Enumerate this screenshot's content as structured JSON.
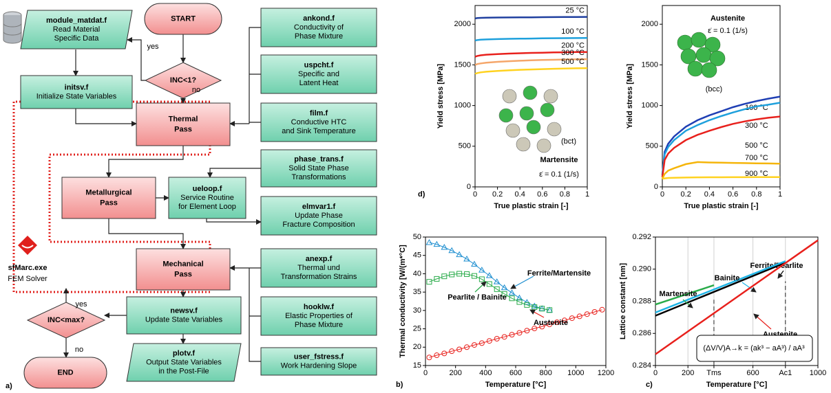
{
  "flowchart": {
    "nodes": [
      {
        "lines": [
          "START"
        ]
      },
      {
        "lines": [
          "module_matdat.f",
          "Read Material",
          "Specific Data"
        ]
      },
      {
        "lines": [
          "INC<1?"
        ]
      },
      {
        "lines": [
          "initsv.f",
          "Initialize State Variables"
        ]
      },
      {
        "lines": [
          "Thermal",
          "Pass"
        ]
      },
      {
        "lines": [
          "ankond.f",
          "Conductivity of",
          "Phase Mixture"
        ]
      },
      {
        "lines": [
          "uspcht.f",
          "Specific and",
          "Latent Heat"
        ]
      },
      {
        "lines": [
          "film.f",
          "Conductive HTC",
          "and Sink Temperature"
        ]
      },
      {
        "lines": [
          "phase_trans.f",
          "Solid State Phase",
          "Transformations"
        ]
      },
      {
        "lines": [
          "Metallurgical",
          "Pass"
        ]
      },
      {
        "lines": [
          "ueloop.f",
          "Service Routine",
          "for Element Loop"
        ]
      },
      {
        "lines": [
          "elmvar1.f",
          "Update Phase",
          "Fracture Composition"
        ]
      },
      {
        "lines": [
          "Mechanical",
          "Pass"
        ]
      },
      {
        "lines": [
          "anexp.f",
          "Thermal und",
          "Transformation Strains"
        ]
      },
      {
        "lines": [
          "newsv.f",
          "Update State Variables"
        ]
      },
      {
        "lines": [
          "hooklw.f",
          "Elastic Properties of",
          "Phase Mixture"
        ]
      },
      {
        "lines": [
          "INC<max?"
        ]
      },
      {
        "lines": [
          "plotv.f",
          "Output State Variables",
          "in the Post-File"
        ]
      },
      {
        "lines": [
          "user_fstress.f",
          "Work Hardening Slope"
        ]
      },
      {
        "lines": [
          "END"
        ]
      }
    ],
    "labels": [
      "yes",
      "no",
      "yes",
      "no"
    ],
    "solver": [
      "sfMarc.exe",
      "FEM Solver"
    ],
    "panel_label": "a)"
  },
  "chart_data": [
    {
      "type": "line",
      "panel_label": "d)",
      "xlabel": "True plastic strain [-]",
      "ylabel": "Yield stress [MPa]",
      "annotations": [
        "Martensite",
        "ε̇ = 0.1 (1/s)",
        "(bct)"
      ],
      "x": [
        0,
        0.02,
        0.05,
        0.1,
        0.2,
        0.3,
        0.4,
        0.5,
        0.6,
        0.7,
        0.8,
        0.9,
        1
      ],
      "xlim": [
        0,
        1
      ],
      "xticks": [
        0,
        0.2,
        0.4,
        0.6,
        0.8,
        1
      ],
      "ylim": [
        0,
        2230
      ],
      "yticks": [
        0,
        500,
        1000,
        1500,
        2000
      ],
      "series": [
        {
          "name": "25 °C",
          "color": "#1f3f9f",
          "values": [
            2070,
            2075,
            2078,
            2080,
            2082,
            2083,
            2084,
            2085,
            2086,
            2087,
            2088,
            2089,
            2090
          ]
        },
        {
          "name": "100 °C",
          "color": "#1ea0dc",
          "values": [
            1800,
            1805,
            1810,
            1813,
            1817,
            1820,
            1822,
            1824,
            1826,
            1828,
            1829,
            1830,
            1831
          ]
        },
        {
          "name": "200 °C",
          "color": "#e8201c",
          "values": [
            1600,
            1610,
            1618,
            1625,
            1633,
            1639,
            1643,
            1647,
            1650,
            1653,
            1655,
            1657,
            1658
          ]
        },
        {
          "name": "300 °C",
          "color": "#f5a66a",
          "values": [
            1500,
            1510,
            1518,
            1527,
            1537,
            1545,
            1551,
            1556,
            1560,
            1563,
            1566,
            1568,
            1570
          ]
        },
        {
          "name": "500 °C",
          "color": "#ffd21f",
          "values": [
            1390,
            1400,
            1408,
            1416,
            1426,
            1433,
            1439,
            1444,
            1448,
            1452,
            1455,
            1458,
            1460
          ]
        }
      ]
    },
    {
      "type": "line",
      "xlabel": "True plastic strain [-]",
      "ylabel": "Yield stress [MPa]",
      "annotations": [
        "Austenite",
        "ε̇ = 0.1 (1/s)",
        "(bcc)"
      ],
      "x": [
        0,
        0.02,
        0.05,
        0.1,
        0.2,
        0.3,
        0.4,
        0.5,
        0.6,
        0.7,
        0.8,
        0.9,
        1
      ],
      "xlim": [
        0,
        1
      ],
      "xticks": [
        0,
        0.2,
        0.4,
        0.6,
        0.8,
        1
      ],
      "ylim": [
        0,
        2230
      ],
      "yticks": [
        0,
        500,
        1000,
        1500,
        2000
      ],
      "series": [
        {
          "name": "100 °C",
          "color": "#1f3fb4",
          "values": [
            150,
            430,
            530,
            620,
            740,
            820,
            880,
            930,
            980,
            1020,
            1055,
            1085,
            1110
          ]
        },
        {
          "name": "300 °C",
          "color": "#1ea0dc",
          "values": [
            140,
            400,
            490,
            575,
            690,
            760,
            820,
            870,
            915,
            955,
            990,
            1010,
            1035
          ]
        },
        {
          "name": "500 °C",
          "color": "#e8201c",
          "values": [
            120,
            330,
            410,
            480,
            575,
            640,
            690,
            735,
            775,
            805,
            830,
            850,
            865
          ]
        },
        {
          "name": "700 °C",
          "color": "#f5b50a",
          "values": [
            100,
            160,
            200,
            230,
            280,
            305,
            300,
            297,
            295,
            292,
            290,
            288,
            285
          ]
        },
        {
          "name": "900 °C",
          "color": "#ffd21f",
          "values": [
            100,
            105,
            110,
            112,
            115,
            117,
            118,
            118,
            119,
            119,
            120,
            120,
            120
          ]
        }
      ]
    },
    {
      "type": "line",
      "panel_label": "b)",
      "xlabel": "Temperature [°C]",
      "ylabel": "Thermal conductivity [W/(m*°C]",
      "xlim": [
        0,
        1200
      ],
      "xticks": [
        0,
        200,
        400,
        600,
        800,
        1000,
        1200
      ],
      "ylim": [
        15,
        50
      ],
      "yticks": [
        15,
        20,
        25,
        30,
        35,
        40,
        45,
        50
      ],
      "series": [
        {
          "name": "Ferrite/Martensite",
          "color": "#1f8fd0",
          "marker": "triangle",
          "x": [
            25,
            75,
            125,
            175,
            225,
            275,
            325,
            375,
            425,
            475,
            525,
            575,
            625,
            675,
            725,
            775,
            825
          ],
          "values": [
            48.5,
            48,
            47.2,
            46.3,
            45.2,
            44,
            42.6,
            41,
            39.5,
            37.8,
            36.2,
            34.8,
            33.4,
            32.2,
            31.2,
            30.5,
            30.1
          ]
        },
        {
          "name": "Pearlite / Bainite",
          "color": "#2aab4a",
          "marker": "square",
          "x": [
            25,
            75,
            125,
            175,
            225,
            275,
            325,
            375,
            425,
            475,
            525,
            575,
            625,
            675,
            725,
            775,
            825
          ],
          "values": [
            37.8,
            38.6,
            39.3,
            39.8,
            40,
            39.9,
            39.4,
            38.5,
            37.2,
            35.8,
            34.5,
            33.3,
            32.3,
            31.5,
            30.9,
            30.5,
            30.1
          ]
        },
        {
          "name": "Austenite",
          "color": "#e8201c",
          "marker": "circle",
          "x": [
            25,
            75,
            125,
            175,
            225,
            275,
            325,
            375,
            425,
            475,
            525,
            575,
            625,
            675,
            725,
            775,
            825,
            875,
            925,
            975,
            1025,
            1075,
            1125,
            1175
          ],
          "values": [
            17.2,
            17.8,
            18.3,
            18.9,
            19.4,
            20,
            20.6,
            21.1,
            21.7,
            22.3,
            22.8,
            23.4,
            23.9,
            24.5,
            25.1,
            25.6,
            26.2,
            26.8,
            27.3,
            27.9,
            28.4,
            29,
            29.6,
            30.2
          ]
        }
      ]
    },
    {
      "type": "line",
      "panel_label": "c)",
      "xlabel": "Temperature [°C]",
      "ylabel": "Lattice constant [nm]",
      "grid": "x",
      "annotations": [
        "(ΔV/V)A→k = (ak³ − aA³) / aA³"
      ],
      "xlim": [
        0,
        1000
      ],
      "xticks": [
        0,
        200,
        {
          "value": 360,
          "label": "Tms"
        },
        600,
        {
          "value": 800,
          "label": "Ac1"
        },
        1000
      ],
      "ylim": [
        0.284,
        0.292
      ],
      "yticks": [
        0.284,
        0.286,
        0.288,
        {
          "value": 0.29,
          "label": "0.290"
        },
        0.292
      ],
      "series": [
        {
          "name": "Ferrite/Pearlite",
          "color": "#000000",
          "x": [
            0,
            800
          ],
          "values": [
            0.2871,
            0.2904
          ]
        },
        {
          "name": "Bainite",
          "color": "#1eb4e6",
          "x": [
            0,
            800
          ],
          "values": [
            0.2873,
            0.2905
          ]
        },
        {
          "name": "Martensite",
          "color": "#2aab4a",
          "x": [
            0,
            360
          ],
          "values": [
            0.2878,
            0.289
          ]
        },
        {
          "name": "Austenite",
          "color": "#e8201c",
          "x": [
            0,
            1000
          ],
          "values": [
            0.2847,
            0.2918
          ]
        }
      ]
    }
  ]
}
